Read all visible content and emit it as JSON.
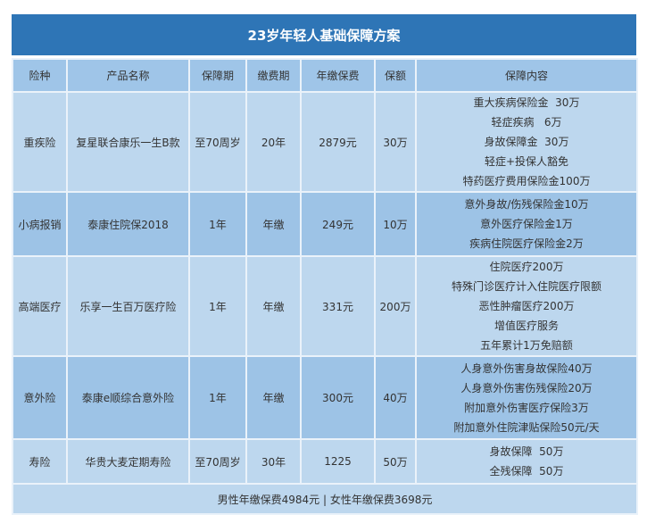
{
  "title": "23岁年轻人基础保障方案",
  "headers": [
    "险种",
    "产品名称",
    "保障期",
    "缴费期",
    "年缴保费",
    "保额",
    "保障内容"
  ],
  "rows": [
    {
      "type": "重疾险",
      "product": "复星联合康乐一生B款",
      "term": "至70周岁",
      "pay": "20年",
      "premium": "2879元",
      "amount": "30万",
      "content": [
        "重大疾病保险金  30万",
        "轻症疾病   6万",
        "身故保障金  30万",
        "轻症+投保人豁免",
        "特药医疗费用保险金100万"
      ]
    },
    {
      "type": "小病报销",
      "product": "泰康住院保2018",
      "term": "1年",
      "pay": "年缴",
      "premium": "249元",
      "amount": "10万",
      "content": [
        "意外身故/伤残保险金10万",
        "意外医疗保险金1万",
        "疾病住院医疗保险金2万"
      ]
    },
    {
      "type": "高端医疗",
      "product": "乐享一生百万医疗险",
      "term": "1年",
      "pay": "年缴",
      "premium": "331元",
      "amount": "200万",
      "content": [
        "住院医疗200万",
        "特殊门诊医疗计入住院医疗限额",
        "恶性肿瘤医疗200万",
        "增值医疗服务",
        "五年累计1万免赔额"
      ]
    },
    {
      "type": "意外险",
      "product": "泰康e顺综合意外险",
      "term": "1年",
      "pay": "年缴",
      "premium": "300元",
      "amount": "40万",
      "content": [
        "人身意外伤害身故保险40万",
        "人身意外伤害伤残保险20万",
        "附加意外伤害医疗保险3万",
        "附加意外住院津贴保险50元/天"
      ]
    },
    {
      "type": "寿险",
      "product": "华贵大麦定期寿险",
      "term": "至70周岁",
      "pay": "30年",
      "premium": "1225",
      "amount": "50万",
      "content": [
        "身故保障  50万",
        "全残保障  50万"
      ]
    }
  ],
  "footer": "男性年缴保费4984元 | 女性年缴保费3698元",
  "colors": {
    "title": "#2e75b6",
    "light": "#bdd7ee",
    "dark": "#9dc3e6"
  }
}
